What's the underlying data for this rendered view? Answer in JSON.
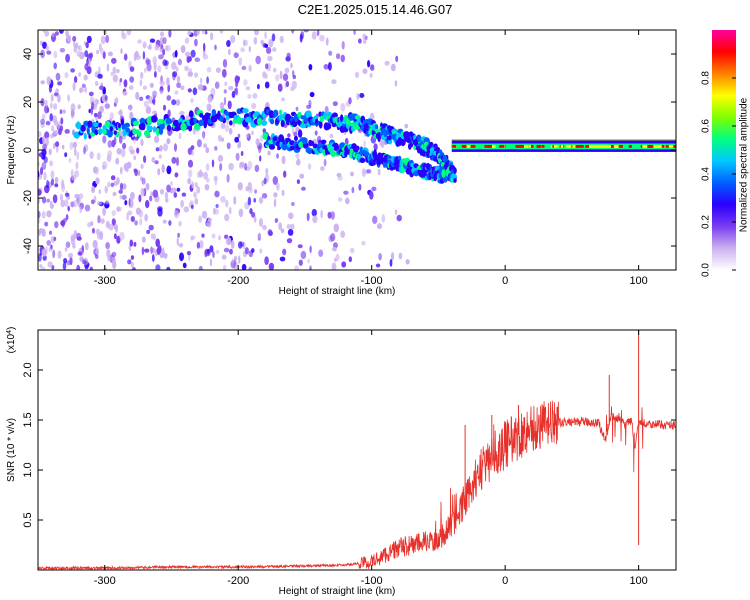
{
  "title": "C2E1.2025.015.14.46.G07",
  "colors": {
    "snr_line": "#e8302a",
    "frame": "#000000",
    "colormap": [
      "#ffffff",
      "#cbb0f0",
      "#7a3cf0",
      "#2a00ff",
      "#0060ff",
      "#00c8ff",
      "#00ff80",
      "#80ff00",
      "#ffff00",
      "#ff8000",
      "#ff0000",
      "#ff00a0"
    ]
  },
  "chart_data": [
    {
      "type": "heatmap",
      "xlabel": "Height of straight line (km)",
      "ylabel": "Frequency (Hz)",
      "xlim": [
        -350,
        128
      ],
      "ylim": [
        -50,
        50
      ],
      "x_ticks": [
        -300,
        -200,
        -100,
        0,
        100
      ],
      "x_tick_labels": [
        "-300",
        "-200",
        "-100",
        "0",
        "100"
      ],
      "y_ticks": [
        -40,
        -20,
        0,
        20,
        40
      ],
      "y_tick_labels": [
        "-40",
        "-20",
        "0",
        "20",
        "40"
      ],
      "colorbar": {
        "label": "Normalized spectral amplitude",
        "range": [
          0,
          1
        ],
        "ticks": [
          0.0,
          0.2,
          0.4,
          0.6,
          0.8
        ],
        "tick_labels": [
          "0.0",
          "0.2",
          "0.4",
          "0.6",
          "0.8"
        ]
      },
      "features": {
        "noise_region_x": [
          -350,
          -110
        ],
        "main_trace": [
          {
            "x": -320,
            "y": 8
          },
          {
            "x": -280,
            "y": 9
          },
          {
            "x": -240,
            "y": 12
          },
          {
            "x": -200,
            "y": 14
          },
          {
            "x": -160,
            "y": 13
          },
          {
            "x": -130,
            "y": 12
          },
          {
            "x": -110,
            "y": 11
          },
          {
            "x": -90,
            "y": 7
          },
          {
            "x": -70,
            "y": 4
          },
          {
            "x": -55,
            "y": 0
          },
          {
            "x": -45,
            "y": -6
          },
          {
            "x": -38,
            "y": -12
          }
        ],
        "branch_trace": [
          {
            "x": -180,
            "y": 4
          },
          {
            "x": -150,
            "y": 2
          },
          {
            "x": -120,
            "y": 0
          },
          {
            "x": -100,
            "y": -3
          },
          {
            "x": -80,
            "y": -6
          },
          {
            "x": -60,
            "y": -9
          },
          {
            "x": -45,
            "y": -11
          }
        ],
        "stable_tone": {
          "x_start": -40,
          "x_end": 128,
          "y": 1.5
        }
      }
    },
    {
      "type": "line",
      "xlabel": "Height of straight line (km)",
      "ylabel": "SNR (10 * v/v)",
      "y_multiplier_label": "(x10",
      "y_multiplier_exponent": "4",
      "y_multiplier_close": ")",
      "xlim": [
        -350,
        128
      ],
      "ylim": [
        0,
        2.4
      ],
      "x_ticks": [
        -300,
        -200,
        -100,
        0,
        100
      ],
      "x_tick_labels": [
        "-300",
        "-200",
        "-100",
        "0",
        "100"
      ],
      "y_ticks": [
        0.5,
        1.0,
        1.5,
        2.0
      ],
      "y_tick_labels": [
        "0.5",
        "1.0",
        "1.5",
        "2.0"
      ],
      "series": [
        {
          "x": [
            -350,
            -300,
            -250,
            -200,
            -150,
            -120,
            -100,
            -90,
            -80,
            -70,
            -60,
            -50,
            -40,
            -35,
            -30,
            -25,
            -20,
            -15,
            -10,
            -5,
            0,
            5,
            10,
            15,
            20,
            30,
            40,
            50,
            60,
            70,
            75,
            80,
            85,
            90,
            95,
            97,
            100,
            102,
            105,
            110,
            120,
            128
          ],
          "y": [
            0.02,
            0.02,
            0.03,
            0.03,
            0.04,
            0.05,
            0.08,
            0.15,
            0.22,
            0.25,
            0.28,
            0.3,
            0.45,
            0.55,
            0.7,
            0.85,
            0.95,
            1.05,
            1.15,
            1.2,
            1.25,
            1.3,
            1.35,
            1.4,
            1.42,
            1.45,
            1.47,
            1.48,
            1.48,
            1.47,
            1.3,
            1.55,
            1.5,
            1.45,
            1.5,
            1.2,
            1.48,
            1.45,
            1.47,
            1.46,
            1.45,
            1.45
          ]
        }
      ],
      "spikes": [
        {
          "x": -30,
          "y": 1.45
        },
        {
          "x": -10,
          "y": 1.55
        },
        {
          "x": 10,
          "y": 1.65
        },
        {
          "x": 78,
          "y": 1.95
        },
        {
          "x": 100,
          "y": 2.4
        },
        {
          "x": 100,
          "y": 0.25
        }
      ]
    }
  ]
}
